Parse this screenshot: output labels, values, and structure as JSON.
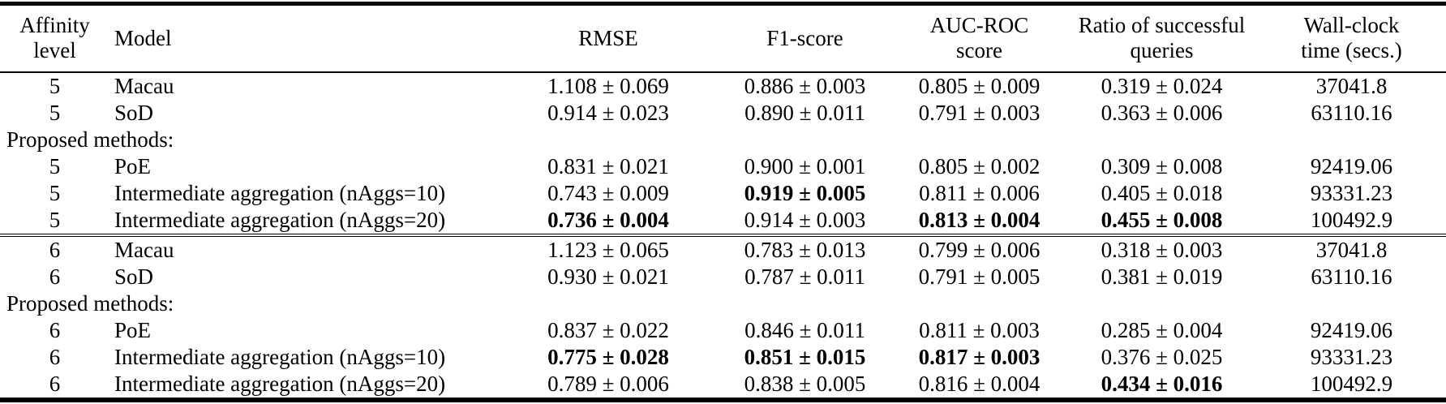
{
  "table": {
    "columns": [
      {
        "key": "affinity",
        "header_lines": [
          "Affinity",
          "level"
        ],
        "align": "center"
      },
      {
        "key": "model",
        "header_lines": [
          "Model"
        ],
        "align": "left"
      },
      {
        "key": "rmse",
        "header_lines": [
          "RMSE"
        ],
        "align": "center"
      },
      {
        "key": "f1",
        "header_lines": [
          "F1-score"
        ],
        "align": "center"
      },
      {
        "key": "auc",
        "header_lines": [
          "AUC-ROC",
          "score"
        ],
        "align": "center"
      },
      {
        "key": "ratio",
        "header_lines": [
          "Ratio of successful",
          "queries"
        ],
        "align": "center"
      },
      {
        "key": "wallclock",
        "header_lines": [
          "Wall-clock",
          "time (secs.)"
        ],
        "align": "center"
      }
    ],
    "sections": [
      {
        "rows": [
          {
            "type": "data",
            "affinity": "5",
            "model": "Macau",
            "rmse": "1.108 ± 0.069",
            "f1": "0.886 ± 0.003",
            "auc": "0.805 ± 0.009",
            "ratio": "0.319 ± 0.024",
            "wallclock": "37041.8",
            "bold": []
          },
          {
            "type": "data",
            "affinity": "5",
            "model": "SoD",
            "rmse": "0.914 ± 0.023",
            "f1": "0.890 ± 0.011",
            "auc": "0.791 ± 0.003",
            "ratio": "0.363 ± 0.006",
            "wallclock": "63110.16",
            "bold": []
          },
          {
            "type": "label",
            "label": "Proposed methods:"
          },
          {
            "type": "data",
            "affinity": "5",
            "model": "PoE",
            "rmse": "0.831 ± 0.021",
            "f1": "0.900 ± 0.001",
            "auc": "0.805 ± 0.002",
            "ratio": "0.309 ± 0.008",
            "wallclock": "92419.06",
            "bold": []
          },
          {
            "type": "data",
            "affinity": "5",
            "model": "Intermediate aggregation (nAggs=10)",
            "rmse": "0.743 ± 0.009",
            "f1": "0.919 ± 0.005",
            "auc": "0.811 ± 0.006",
            "ratio": "0.405 ± 0.018",
            "wallclock": "93331.23",
            "bold": [
              "f1"
            ]
          },
          {
            "type": "data",
            "affinity": "5",
            "model": "Intermediate aggregation (nAggs=20)",
            "rmse": "0.736 ± 0.004",
            "f1": "0.914 ± 0.003",
            "auc": "0.813 ± 0.004",
            "ratio": "0.455 ± 0.008",
            "wallclock": "100492.9",
            "bold": [
              "rmse",
              "auc",
              "ratio"
            ]
          }
        ]
      },
      {
        "rows": [
          {
            "type": "data",
            "affinity": "6",
            "model": "Macau",
            "rmse": "1.123 ± 0.065",
            "f1": "0.783 ± 0.013",
            "auc": "0.799 ± 0.006",
            "ratio": "0.318 ± 0.003",
            "wallclock": "37041.8",
            "bold": []
          },
          {
            "type": "data",
            "affinity": "6",
            "model": "SoD",
            "rmse": "0.930 ± 0.021",
            "f1": "0.787 ± 0.011",
            "auc": "0.791 ± 0.005",
            "ratio": "0.381 ± 0.019",
            "wallclock": "63110.16",
            "bold": []
          },
          {
            "type": "label",
            "label": "Proposed methods:"
          },
          {
            "type": "data",
            "affinity": "6",
            "model": "PoE",
            "rmse": "0.837 ± 0.022",
            "f1": "0.846 ± 0.011",
            "auc": "0.811 ± 0.003",
            "ratio": "0.285 ± 0.004",
            "wallclock": "92419.06",
            "bold": []
          },
          {
            "type": "data",
            "affinity": "6",
            "model": "Intermediate aggregation (nAggs=10)",
            "rmse": "0.775 ± 0.028",
            "f1": "0.851 ± 0.015",
            "auc": "0.817 ± 0.003",
            "ratio": "0.376 ± 0.025",
            "wallclock": "93331.23",
            "bold": [
              "rmse",
              "f1",
              "auc"
            ]
          },
          {
            "type": "data",
            "affinity": "6",
            "model": "Intermediate aggregation (nAggs=20)",
            "rmse": "0.789 ± 0.006",
            "f1": "0.838 ± 0.005",
            "auc": "0.816 ± 0.004",
            "ratio": "0.434 ± 0.016",
            "wallclock": "100492.9",
            "bold": [
              "ratio"
            ]
          }
        ]
      }
    ]
  }
}
